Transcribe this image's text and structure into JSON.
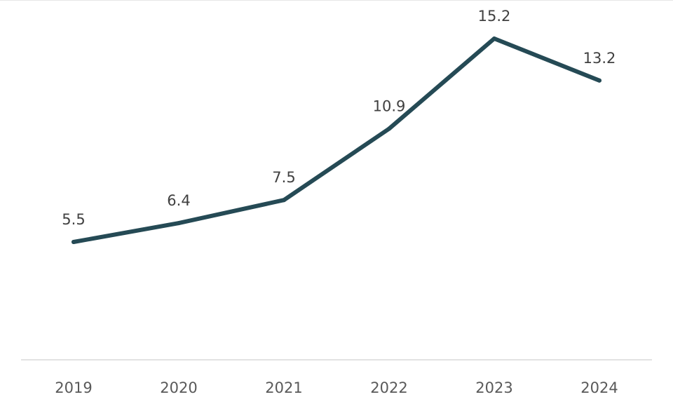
{
  "chart_data": {
    "type": "line",
    "categories": [
      "2019",
      "2020",
      "2021",
      "2022",
      "2023",
      "2024"
    ],
    "series": [
      {
        "values": [
          5.5,
          6.4,
          7.5,
          10.9,
          15.2,
          13.2
        ],
        "color": "#254a55"
      }
    ],
    "data_labels": [
      "5.5",
      "6.4",
      "7.5",
      "10.9",
      "15.2",
      "13.2"
    ],
    "ylim": [
      -0.5,
      16.8
    ],
    "grid": false,
    "legend": "none",
    "axis_color": "#d9d9d9"
  }
}
